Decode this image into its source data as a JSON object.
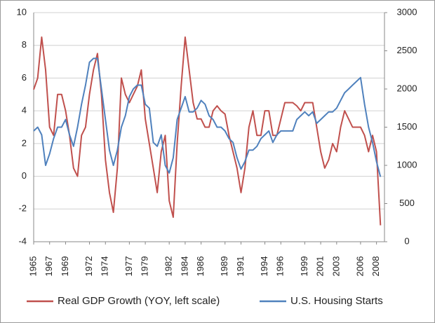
{
  "chart_data": {
    "type": "line",
    "x": [
      1965.0,
      1965.5,
      1966.0,
      1966.5,
      1967.0,
      1967.5,
      1968.0,
      1968.5,
      1969.0,
      1969.5,
      1970.0,
      1970.5,
      1971.0,
      1971.5,
      1972.0,
      1972.5,
      1973.0,
      1973.5,
      1974.0,
      1974.5,
      1975.0,
      1975.5,
      1976.0,
      1976.5,
      1977.0,
      1977.5,
      1978.0,
      1978.5,
      1979.0,
      1979.5,
      1980.0,
      1980.5,
      1981.0,
      1981.5,
      1982.0,
      1982.5,
      1983.0,
      1983.5,
      1984.0,
      1984.5,
      1985.0,
      1985.5,
      1986.0,
      1986.5,
      1987.0,
      1987.5,
      1988.0,
      1988.5,
      1989.0,
      1989.5,
      1990.0,
      1990.5,
      1991.0,
      1991.5,
      1992.0,
      1992.5,
      1993.0,
      1993.5,
      1994.0,
      1994.5,
      1995.0,
      1995.5,
      1996.0,
      1996.5,
      1997.0,
      1997.5,
      1998.0,
      1998.5,
      1999.0,
      1999.5,
      2000.0,
      2000.5,
      2001.0,
      2001.5,
      2002.0,
      2002.5,
      2003.0,
      2003.5,
      2004.0,
      2004.5,
      2005.0,
      2005.5,
      2006.0,
      2006.5,
      2007.0,
      2007.5,
      2008.0,
      2008.5
    ],
    "series": [
      {
        "name": "Real GDP Growth (YOY, left scale)",
        "color": "#c0504d",
        "values": [
          5.3,
          6.0,
          8.5,
          6.5,
          3.0,
          2.5,
          5.0,
          5.0,
          4.0,
          2.5,
          0.5,
          0.0,
          2.5,
          3.0,
          5.0,
          6.5,
          7.5,
          5.0,
          1.0,
          -1.0,
          -2.2,
          0.5,
          6.0,
          5.0,
          4.5,
          5.0,
          5.5,
          6.5,
          3.5,
          2.0,
          0.5,
          -1.0,
          1.5,
          2.5,
          -1.5,
          -2.5,
          2.0,
          5.5,
          8.5,
          6.5,
          4.5,
          3.5,
          3.5,
          3.0,
          3.0,
          4.0,
          4.3,
          4.0,
          3.8,
          2.5,
          1.5,
          0.5,
          -1.0,
          0.5,
          3.0,
          4.0,
          2.5,
          2.5,
          4.0,
          4.0,
          2.5,
          2.5,
          3.5,
          4.5,
          4.5,
          4.5,
          4.3,
          4.0,
          4.5,
          4.5,
          4.5,
          3.0,
          1.5,
          0.5,
          1.0,
          2.0,
          1.5,
          3.0,
          4.0,
          3.5,
          3.0,
          3.0,
          3.0,
          2.5,
          1.5,
          2.5,
          1.5,
          -3.0
        ]
      },
      {
        "name": "U.S. Housing Starts",
        "color": "#4f81bd",
        "axis": "y2",
        "values": [
          1450,
          1500,
          1400,
          1000,
          1150,
          1350,
          1500,
          1500,
          1600,
          1400,
          1250,
          1500,
          1800,
          2050,
          2350,
          2400,
          2400,
          2000,
          1600,
          1200,
          1000,
          1200,
          1500,
          1650,
          1900,
          2000,
          2050,
          2050,
          1800,
          1750,
          1300,
          1250,
          1400,
          1000,
          900,
          1100,
          1600,
          1750,
          1900,
          1700,
          1700,
          1750,
          1850,
          1800,
          1650,
          1600,
          1500,
          1500,
          1450,
          1350,
          1300,
          1100,
          950,
          1050,
          1200,
          1200,
          1250,
          1350,
          1400,
          1450,
          1300,
          1400,
          1450,
          1450,
          1450,
          1450,
          1600,
          1650,
          1700,
          1650,
          1700,
          1550,
          1600,
          1650,
          1700,
          1700,
          1750,
          1850,
          1950,
          2000,
          2050,
          2100,
          2150,
          1800,
          1500,
          1300,
          1050,
          850
        ]
      }
    ],
    "xlim": [
      1965,
      2009
    ],
    "xticks": [
      1965,
      1967,
      1969,
      1972,
      1974,
      1977,
      1979,
      1982,
      1984,
      1986,
      1989,
      1991,
      1994,
      1996,
      1999,
      2001,
      2003,
      2006,
      2008
    ],
    "ylim": [
      -4,
      10
    ],
    "yticks": [
      -4,
      -2,
      0,
      2,
      4,
      6,
      8,
      10
    ],
    "y2lim": [
      0,
      3000
    ],
    "y2ticks": [
      0,
      500,
      1000,
      1500,
      2000,
      2500,
      3000
    ],
    "grid": true,
    "legend": "bottom"
  }
}
